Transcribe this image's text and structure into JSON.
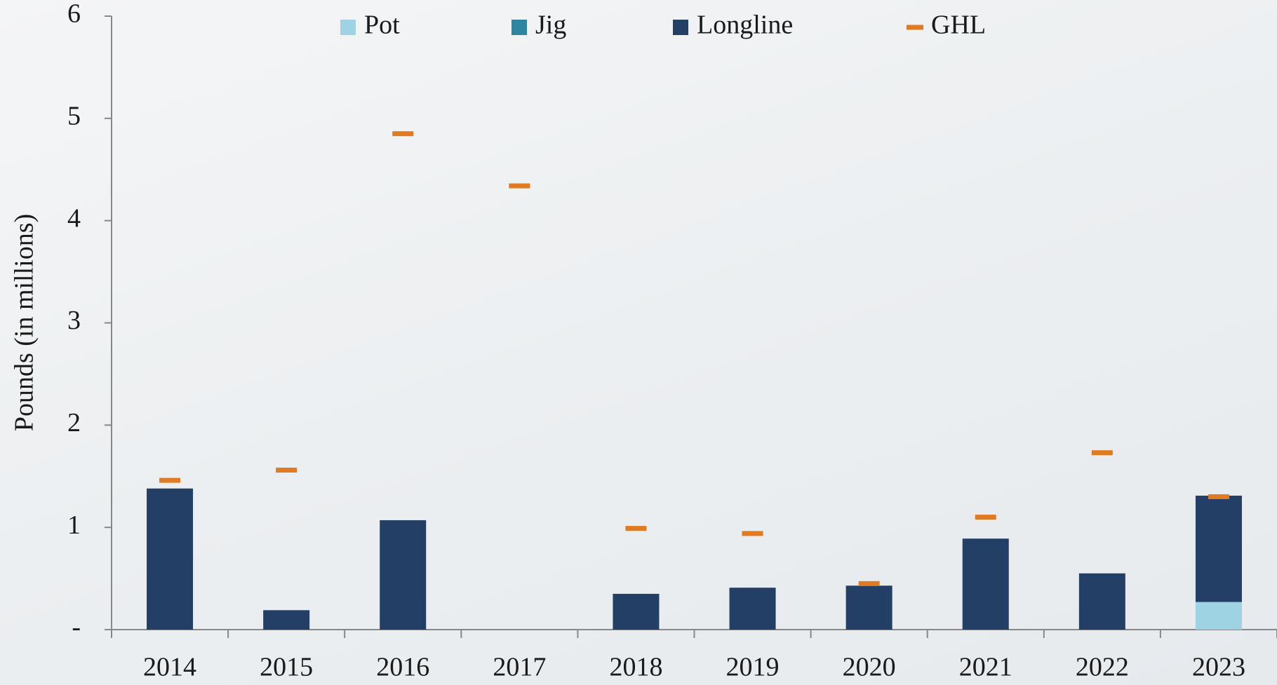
{
  "chart_data": {
    "type": "bar",
    "stacked": true,
    "y_label": "Pounds (in millions)",
    "categories": [
      "2014",
      "2015",
      "2016",
      "2017",
      "2018",
      "2019",
      "2020",
      "2021",
      "2022",
      "2023"
    ],
    "series": [
      {
        "name": "Pot",
        "color": "#9dd3e3",
        "values": [
          0,
          0,
          0,
          0,
          0,
          0,
          0,
          0,
          0,
          0.27
        ]
      },
      {
        "name": "Jig",
        "color": "#2e86a0",
        "values": [
          0,
          0,
          0,
          0,
          0,
          0,
          0,
          0,
          0,
          0
        ]
      },
      {
        "name": "Longline",
        "color": "#243f66",
        "values": [
          1.38,
          0.19,
          1.07,
          0,
          0.35,
          0.41,
          0.43,
          0.89,
          0.55,
          1.04
        ]
      }
    ],
    "markers": {
      "name": "GHL",
      "color": "#e07a23",
      "values": [
        1.46,
        1.56,
        4.85,
        4.34,
        0.99,
        0.94,
        0.45,
        1.1,
        1.73,
        1.3
      ]
    },
    "ylim": [
      0,
      6
    ],
    "yticks": [
      {
        "value": 0,
        "label": "-"
      },
      1,
      2,
      3,
      4,
      5,
      6
    ],
    "grid": false,
    "legend": "top"
  }
}
